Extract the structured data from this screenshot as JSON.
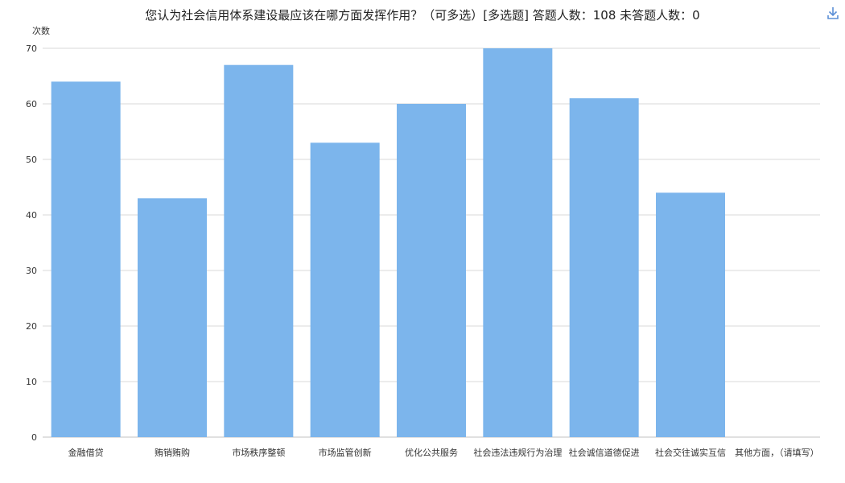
{
  "chart_data": {
    "type": "bar",
    "title": "您认为社会信用体系建设最应该在哪方面发挥作用？（可多选）[多选题]  答题人数：108  未答题人数：0",
    "ylabel": "次数",
    "xlabel": "",
    "categories": [
      "金融借贷",
      "贿销贿购",
      "市场秩序整顿",
      "市场监管创新",
      "优化公共服务",
      "社会违法违规行为治理",
      "社会诚信道德促进",
      "社会交往诚实互信",
      "其他方面，（请填写）"
    ],
    "values": [
      64,
      43,
      67,
      53,
      60,
      70,
      61,
      44,
      0
    ],
    "ylim": [
      0,
      70
    ],
    "yticks": [
      0,
      10,
      20,
      30,
      40,
      50,
      60,
      70
    ],
    "grid": true,
    "colors": {
      "bar": "#7cb5ec",
      "grid": "#d8d8d8",
      "axis": "#c0c0c0"
    }
  },
  "toolbar": {
    "download_icon": "download-icon"
  }
}
